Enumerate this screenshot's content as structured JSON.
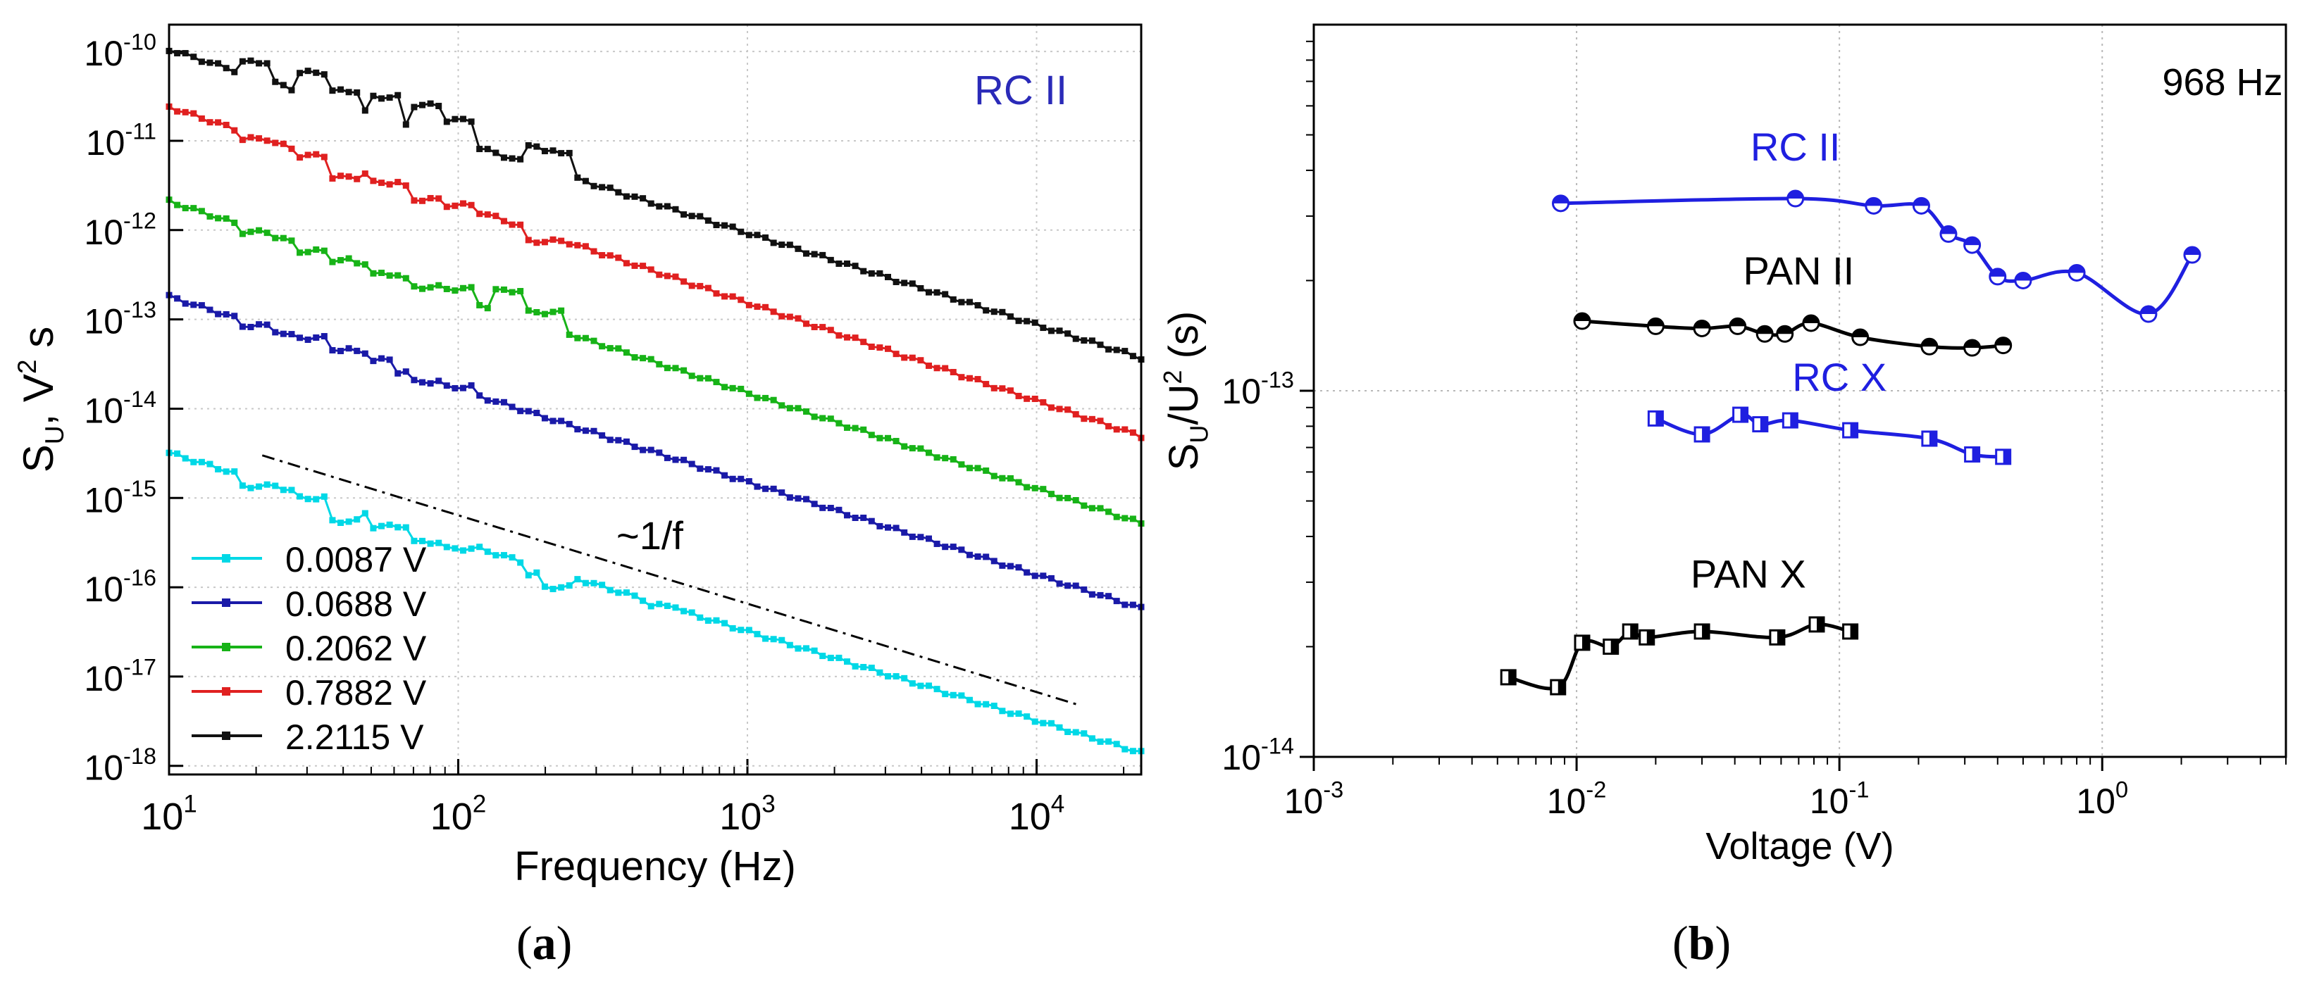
{
  "panel_labels": {
    "a": "a",
    "b": "b"
  },
  "chart_data": [
    {
      "id": "a",
      "type": "line",
      "scale": "log-log",
      "title": "",
      "annotation": "RC II",
      "annotation_color": "#2a2ab8",
      "xlabel": "Frequency (Hz)",
      "ylabel_main": "S",
      "ylabel_sub": "U",
      "ylabel_rest": ", V",
      "ylabel_sup": "2",
      "ylabel_unit": " s",
      "xlim": [
        10,
        23000
      ],
      "ylim": [
        8e-19,
        2e-10
      ],
      "xticks": [
        {
          "value": 10,
          "base": "10",
          "exp": "1"
        },
        {
          "value": 100,
          "base": "10",
          "exp": "2"
        },
        {
          "value": 1000,
          "base": "10",
          "exp": "3"
        },
        {
          "value": 10000,
          "base": "10",
          "exp": "4"
        }
      ],
      "yticks": [
        {
          "value": 1e-10,
          "base": "10",
          "exp": "-10"
        },
        {
          "value": 1e-11,
          "base": "10",
          "exp": "-11"
        },
        {
          "value": 1e-12,
          "base": "10",
          "exp": "-12"
        },
        {
          "value": 1e-13,
          "base": "10",
          "exp": "-13"
        },
        {
          "value": 1e-14,
          "base": "10",
          "exp": "-14"
        },
        {
          "value": 1e-15,
          "base": "10",
          "exp": "-15"
        },
        {
          "value": 1e-16,
          "base": "10",
          "exp": "-16"
        },
        {
          "value": 1e-17,
          "base": "10",
          "exp": "-17"
        },
        {
          "value": 1e-18,
          "base": "10",
          "exp": "-18"
        }
      ],
      "grid": true,
      "legend_position": "bottom-left",
      "series": [
        {
          "name": "0.0087 V",
          "color": "#00d8e6",
          "y_at_10": 3.2e-15,
          "y_at_end": 1.4e-18,
          "bumps": [
            [
              20,
              1.35e-15
            ],
            [
              32,
              1e-15
            ],
            [
              41,
              5.5e-16
            ],
            [
              55,
              4.8e-16
            ],
            [
              80,
              3.2e-16
            ],
            [
              100,
              2.7e-16
            ],
            [
              200,
              1.4e-16
            ],
            [
              220,
              1e-16
            ],
            [
              500,
              6.2e-17
            ]
          ]
        },
        {
          "name": "0.0688 V",
          "color": "#1a1aa8",
          "y_at_10": 1.8e-13,
          "y_at_end": 5.8e-17,
          "bumps": [
            [
              20,
              8.5e-14
            ],
            [
              32,
              6.2e-14
            ],
            [
              41,
              4.6e-14
            ],
            [
              50,
              4.3e-14
            ],
            [
              55,
              3.5e-14
            ],
            [
              70,
              2.6e-14
            ],
            [
              80,
              2e-14
            ],
            [
              100,
              1.75e-14
            ]
          ]
        },
        {
          "name": "0.2062 V",
          "color": "#17b317",
          "y_at_10": 2.1e-12,
          "y_at_end": 5.2e-16,
          "bumps": [
            [
              20,
              9.5e-13
            ],
            [
              32,
              5.8e-13
            ],
            [
              41,
              4.6e-13
            ],
            [
              50,
              4.3e-13
            ],
            [
              55,
              3.2e-13
            ],
            [
              80,
              2.3e-13
            ],
            [
              100,
              2.2e-13
            ],
            [
              150,
              2.1e-13
            ],
            [
              200,
              1.2e-13
            ]
          ]
        },
        {
          "name": "0.7882 V",
          "color": "#e02020",
          "y_at_10": 2.4e-11,
          "y_at_end": 4.9e-15,
          "bumps": [
            [
              20,
              1.05e-11
            ],
            [
              32,
              6.8e-12
            ],
            [
              41,
              3.9e-12
            ],
            [
              55,
              3.4e-12
            ],
            [
              80,
              2.2e-12
            ],
            [
              100,
              1.9e-12
            ],
            [
              200,
              7.5e-13
            ]
          ]
        },
        {
          "name": "2.2115 V",
          "color": "#111111",
          "y_at_10": 1.05e-10,
          "y_at_end": 3.7e-14,
          "bumps": [
            [
              20,
              7.6e-11
            ],
            [
              32,
              5.8e-11
            ],
            [
              41,
              3.6e-11
            ],
            [
              55,
              3.1e-11
            ],
            [
              80,
              2.5e-11
            ],
            [
              100,
              1.7e-11
            ],
            [
              200,
              9e-12
            ],
            [
              220,
              7.5e-12
            ]
          ]
        }
      ],
      "guide_line": {
        "label": "~1/f",
        "from": [
          21,
          3e-15
        ],
        "to": [
          14000,
          4.8e-18
        ],
        "style": "dash-dot"
      }
    },
    {
      "id": "b",
      "type": "scatter",
      "scale": "log-log",
      "title": "",
      "annotation": "968 Hz",
      "xlabel": "Voltage (V)",
      "ylabel_main": "S",
      "ylabel_sub": "U",
      "ylabel_rest": "/U",
      "ylabel_sup": "2",
      "ylabel_unit": " (s)",
      "xlim": [
        0.001,
        5
      ],
      "ylim": [
        1e-14,
        1e-12
      ],
      "xticks": [
        {
          "value": 0.001,
          "base": "10",
          "exp": "-3"
        },
        {
          "value": 0.01,
          "base": "10",
          "exp": "-2"
        },
        {
          "value": 0.1,
          "base": "10",
          "exp": "-1"
        },
        {
          "value": 1,
          "base": "10",
          "exp": "0"
        }
      ],
      "yticks": [
        {
          "value": 1e-13,
          "base": "10",
          "exp": "-13"
        },
        {
          "value": 1e-14,
          "base": "10",
          "exp": "-14"
        }
      ],
      "grid": true,
      "series": [
        {
          "name": "RC II",
          "color": "#1f1fe0",
          "marker": "circle-half",
          "label_at": [
            0.068,
            4.25e-13
          ],
          "points": [
            [
              0.0087,
              3.25e-13
            ],
            [
              0.068,
              3.35e-13
            ],
            [
              0.135,
              3.2e-13
            ],
            [
              0.205,
              3.2e-13
            ],
            [
              0.26,
              2.68e-13
            ],
            [
              0.32,
              2.5e-13
            ],
            [
              0.4,
              2.05e-13
            ],
            [
              0.5,
              2e-13
            ],
            [
              0.8,
              2.1e-13
            ],
            [
              1.5,
              1.62e-13
            ],
            [
              2.2,
              2.35e-13
            ]
          ]
        },
        {
          "name": "PAN II",
          "color": "#000000",
          "marker": "circle-half",
          "label_at": [
            0.07,
            1.95e-13
          ],
          "points": [
            [
              0.0105,
              1.55e-13
            ],
            [
              0.02,
              1.5e-13
            ],
            [
              0.03,
              1.48e-13
            ],
            [
              0.041,
              1.5e-13
            ],
            [
              0.052,
              1.43e-13
            ],
            [
              0.062,
              1.43e-13
            ],
            [
              0.078,
              1.53e-13
            ],
            [
              0.12,
              1.4e-13
            ],
            [
              0.22,
              1.32e-13
            ],
            [
              0.32,
              1.31e-13
            ],
            [
              0.42,
              1.33e-13
            ]
          ]
        },
        {
          "name": "RC X",
          "color": "#1f1fe0",
          "marker": "square-half",
          "label_at": [
            0.1,
            1e-13
          ],
          "points": [
            [
              0.02,
              8.4e-14
            ],
            [
              0.03,
              7.6e-14
            ],
            [
              0.042,
              8.6e-14
            ],
            [
              0.05,
              8.1e-14
            ],
            [
              0.065,
              8.3e-14
            ],
            [
              0.11,
              7.8e-14
            ],
            [
              0.22,
              7.4e-14
            ],
            [
              0.32,
              6.7e-14
            ],
            [
              0.42,
              6.6e-14
            ]
          ]
        },
        {
          "name": "PAN X",
          "color": "#000000",
          "marker": "square-half",
          "label_at": [
            0.045,
            2.9e-14
          ],
          "points": [
            [
              0.0055,
              1.65e-14
            ],
            [
              0.0085,
              1.55e-14
            ],
            [
              0.0105,
              2.05e-14
            ],
            [
              0.0135,
              2e-14
            ],
            [
              0.016,
              2.2e-14
            ],
            [
              0.0185,
              2.12e-14
            ],
            [
              0.03,
              2.2e-14
            ],
            [
              0.058,
              2.12e-14
            ],
            [
              0.082,
              2.3e-14
            ],
            [
              0.11,
              2.2e-14
            ]
          ]
        }
      ]
    }
  ]
}
